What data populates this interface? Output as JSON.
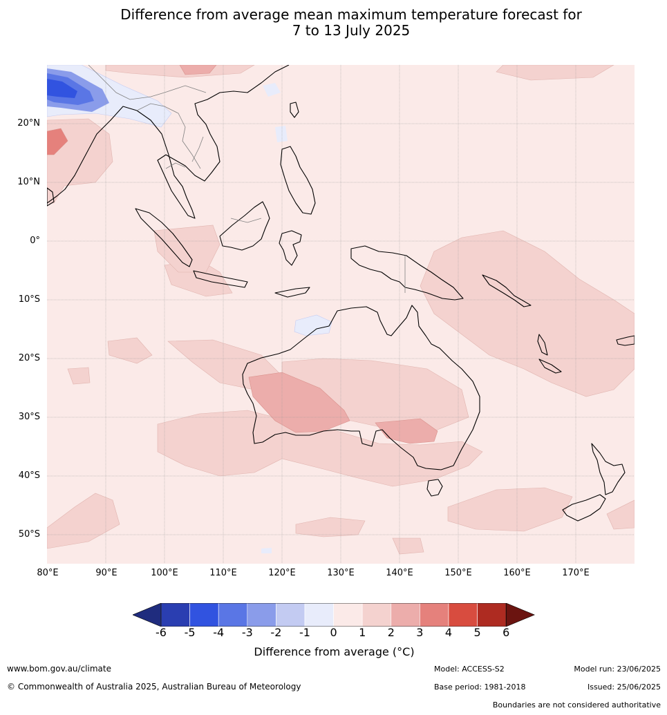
{
  "title_line1": "Difference from average mean maximum temperature forecast for",
  "title_line2": "7 to 13 July 2025",
  "map": {
    "lat_labels": [
      "20°N",
      "10°N",
      "0°",
      "10°S",
      "20°S",
      "30°S",
      "40°S",
      "50°S"
    ],
    "lon_labels": [
      "80°E",
      "90°E",
      "100°E",
      "110°E",
      "120°E",
      "130°E",
      "140°E",
      "150°E",
      "160°E",
      "170°E"
    ],
    "background_color": "#fbeae8",
    "land_outline_color": "#000000",
    "border_color": "#808080",
    "grid_color": "#999999"
  },
  "colorbar": {
    "label": "Difference from average (°C)",
    "ticks": [
      "-6",
      "-5",
      "-4",
      "-3",
      "-2",
      "-1",
      "0",
      "1",
      "2",
      "3",
      "4",
      "5",
      "6"
    ],
    "colors": [
      "#1f2c7e",
      "#2a3eb1",
      "#3153e0",
      "#5a76e5",
      "#8a9cea",
      "#c3cbf2",
      "#e8ecfb",
      "#fbeae8",
      "#f4d2cf",
      "#ecadab",
      "#e5817c",
      "#d84c3f",
      "#ae2b21",
      "#6b1410"
    ]
  },
  "footer": {
    "website": "www.bom.gov.au/climate",
    "copyright": "© Commonwealth of Australia 2025, Australian Bureau of Meteorology",
    "model": "Model: ACCESS-S2",
    "base_period": "Base period: 1981-2018",
    "model_run": "Model run: 23/06/2025",
    "issued": "Issued: 25/06/2025",
    "disclaimer": "Boundaries are not considered authoritative"
  }
}
